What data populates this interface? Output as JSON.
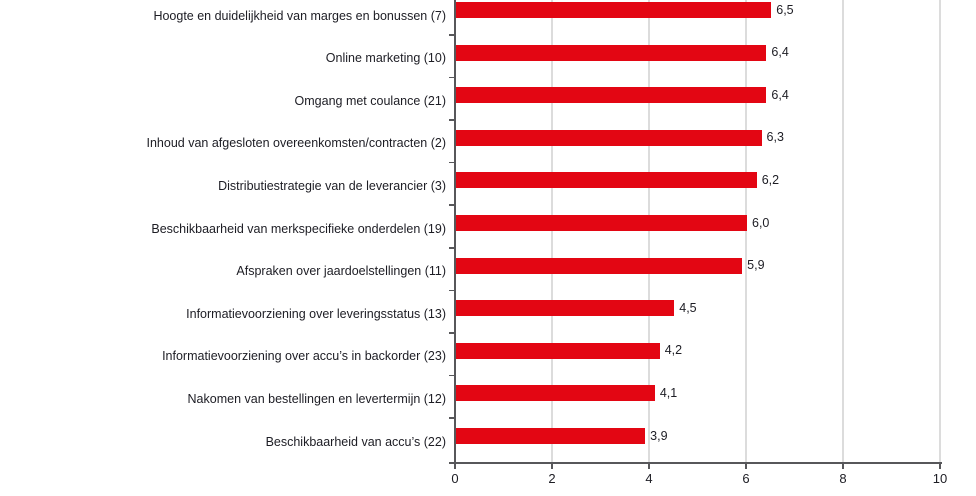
{
  "chart": {
    "bar_color": "#e30613",
    "text_color": "#1d1d24",
    "axis_color": "#57575a",
    "grid_color": "#dcdcdc",
    "background_color": "#ffffff"
  },
  "chart_data": {
    "type": "bar",
    "orientation": "horizontal",
    "title": "",
    "xlabel": "",
    "ylabel": "",
    "categories": [
      "Hoogte en duidelijkheid van marges en bonussen (7)",
      "Online marketing (10)",
      "Omgang met coulance (21)",
      "Inhoud van afgesloten overeenkomsten/contracten (2)",
      "Distributiestrategie van de leverancier (3)",
      "Beschikbaarheid van merkspecifieke onderdelen (19)",
      "Afspraken over jaardoelstellingen (11)",
      "Informatievoorziening over leveringsstatus (13)",
      "Informatievoorziening over accu’s in backorder (23)",
      "Nakomen van bestellingen en levertermijn (12)",
      "Beschikbaarheid van accu’s (22)"
    ],
    "values": [
      6.5,
      6.4,
      6.4,
      6.3,
      6.2,
      6.0,
      5.9,
      4.5,
      4.2,
      4.1,
      3.9
    ],
    "value_labels": [
      "6,5",
      "6,4",
      "6,4",
      "6,3",
      "6,2",
      "6,0",
      "5,9",
      "4,5",
      "4,2",
      "4,1",
      "3,9"
    ],
    "xlim": [
      0,
      10
    ],
    "x_ticks": [
      0,
      2,
      4,
      6,
      8,
      10
    ],
    "x_tick_labels": [
      "0",
      "2",
      "4",
      "6",
      "8",
      "10"
    ],
    "grid": true,
    "legend": false
  }
}
